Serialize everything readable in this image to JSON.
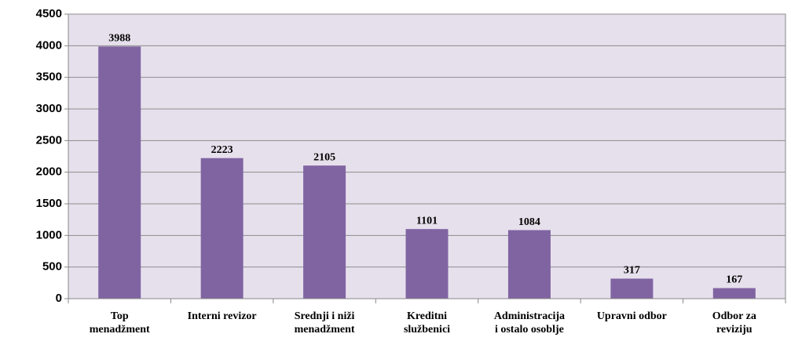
{
  "chart_data": {
    "type": "bar",
    "categories": [
      "Top\nmenadžment",
      "Interni revizor",
      "Srednji i niži\nmenadžment",
      "Kreditni\nslužbenici",
      "Administracija\ni ostalo osoblje",
      "Upravni odbor",
      "Odbor za\nreviziju"
    ],
    "values": [
      3988,
      2223,
      2105,
      1101,
      1084,
      317,
      167
    ],
    "color": "#8064a2",
    "ylim": [
      0,
      4500
    ],
    "yticks": [
      0,
      500,
      1000,
      1500,
      2000,
      2500,
      3000,
      3500,
      4000,
      4500
    ],
    "grid": true
  }
}
